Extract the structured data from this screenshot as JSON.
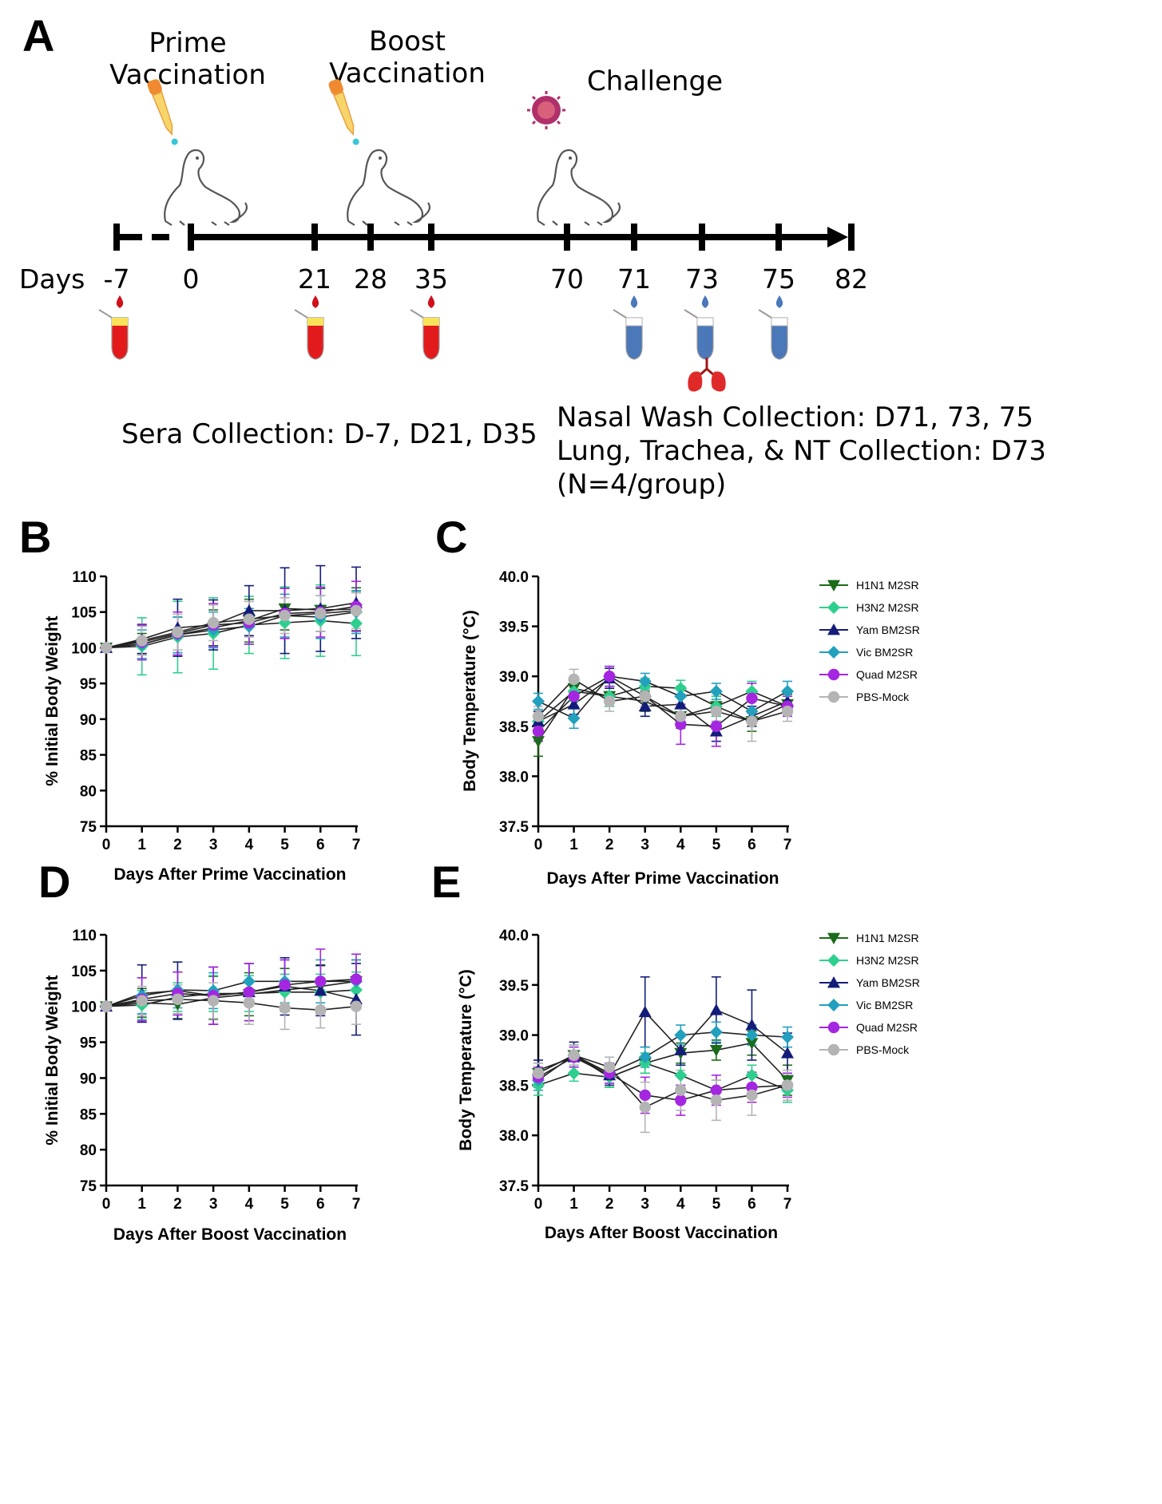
{
  "panel_A": {
    "letter": "A",
    "events": {
      "prime": {
        "line1": "Prime",
        "line2": "Vaccination"
      },
      "boost": {
        "line1": "Boost",
        "line2": "Vaccination"
      },
      "challenge": "Challenge"
    },
    "days_label": "Days",
    "days": [
      "-7",
      "0",
      "21",
      "28",
      "35",
      "70",
      "71",
      "73",
      "75",
      "82"
    ],
    "sera_note": "Sera Collection: D-7, D21, D35",
    "nasal_note_1": "Nasal Wash Collection: D71, 73, 75",
    "nasal_note_2": "Lung, Trachea, & NT Collection: D73",
    "nasal_note_3": "(N=4/group)",
    "colors": {
      "blood": "#d0101a",
      "nasal": "#4a78b8",
      "virus": "#b0306a",
      "lung": "#e02a2a",
      "dropper": "#f0a040"
    }
  },
  "legend": [
    {
      "name": "H1N1 M2SR",
      "color": "#1a6b1a",
      "marker": "triangle-down"
    },
    {
      "name": "H3N2 M2SR",
      "color": "#2ecf8e",
      "marker": "diamond"
    },
    {
      "name": "Yam BM2SR",
      "color": "#141c7a",
      "marker": "triangle-up"
    },
    {
      "name": "Vic BM2SR",
      "color": "#22a0be",
      "marker": "diamond"
    },
    {
      "name": "Quad M2SR",
      "color": "#a526e0",
      "marker": "circle"
    },
    {
      "name": "PBS-Mock",
      "color": "#b4b4b4",
      "marker": "circle"
    }
  ],
  "chart_data": [
    {
      "panel": "B",
      "type": "line",
      "xlabel": "Days After Prime Vaccination",
      "ylabel": "% Initial Body Weight",
      "xlim": [
        0,
        7
      ],
      "ylim": [
        75,
        110
      ],
      "xticks": [
        "0",
        "1",
        "2",
        "3",
        "4",
        "5",
        "6",
        "7"
      ],
      "yticks": [
        "75",
        "80",
        "85",
        "90",
        "95",
        "100",
        "105",
        "110"
      ],
      "x": [
        0,
        1,
        2,
        3,
        4,
        5,
        6,
        7
      ],
      "series": [
        {
          "name": "H1N1 M2SR",
          "values": [
            100,
            100.5,
            101.8,
            102.8,
            103.8,
            105.5,
            105.3,
            105.4
          ],
          "errors": [
            0,
            1.5,
            2.5,
            2.5,
            3,
            3,
            3,
            3
          ]
        },
        {
          "name": "H3N2 M2SR",
          "values": [
            100,
            100.2,
            101.5,
            102,
            103.2,
            103.5,
            103.8,
            103.4
          ],
          "errors": [
            0,
            4,
            5,
            5,
            4,
            5,
            5,
            4.5
          ]
        },
        {
          "name": "Yam BM2SR",
          "values": [
            100,
            101.2,
            102.8,
            103.2,
            105.2,
            105.2,
            105.5,
            106.3
          ],
          "errors": [
            0,
            2,
            4,
            3.5,
            3.5,
            6,
            6,
            5
          ]
        },
        {
          "name": "Vic BM2SR",
          "values": [
            100,
            100.5,
            101.8,
            102.5,
            103,
            104.5,
            104.3,
            105
          ],
          "errors": [
            0,
            2,
            2.5,
            2.5,
            2.5,
            3,
            3,
            3
          ]
        },
        {
          "name": "Quad M2SR",
          "values": [
            100,
            100.8,
            102,
            103.2,
            103.5,
            104.8,
            105,
            105.8
          ],
          "errors": [
            0,
            2.5,
            3,
            3,
            3,
            3.5,
            3.5,
            3.5
          ]
        },
        {
          "name": "PBS-Mock",
          "values": [
            100,
            101,
            102.2,
            103.5,
            104,
            104.5,
            104.8,
            105.2
          ],
          "errors": [
            0,
            2,
            2.5,
            2.5,
            2.5,
            2.5,
            2.5,
            2.5
          ]
        }
      ]
    },
    {
      "panel": "C",
      "type": "line",
      "xlabel": "Days After Prime Vaccination",
      "ylabel": "Body Temperature (°C)",
      "xlim": [
        0,
        7
      ],
      "ylim": [
        37.5,
        40.0
      ],
      "xticks": [
        "0",
        "1",
        "2",
        "3",
        "4",
        "5",
        "6",
        "7"
      ],
      "yticks": [
        "37.5",
        "38.0",
        "38.5",
        "39.0",
        "39.5",
        "40.0"
      ],
      "x": [
        0,
        1,
        2,
        3,
        4,
        5,
        6,
        7
      ],
      "series": [
        {
          "name": "H1N1 M2SR",
          "values": [
            38.35,
            38.88,
            38.8,
            38.75,
            38.6,
            38.7,
            38.55,
            38.72
          ],
          "errors": [
            0.15,
            0.1,
            0.1,
            0.1,
            0.12,
            0.1,
            0.1,
            0.1
          ]
        },
        {
          "name": "H3N2 M2SR",
          "values": [
            38.55,
            38.85,
            38.8,
            38.9,
            38.88,
            38.7,
            38.85,
            38.7
          ],
          "errors": [
            0.1,
            0.1,
            0.1,
            0.08,
            0.08,
            0.1,
            0.1,
            0.1
          ]
        },
        {
          "name": "Yam BM2SR",
          "values": [
            38.55,
            38.72,
            38.98,
            38.7,
            38.72,
            38.45,
            38.6,
            38.75
          ],
          "errors": [
            0.1,
            0.1,
            0.1,
            0.1,
            0.1,
            0.1,
            0.1,
            0.1
          ]
        },
        {
          "name": "Vic BM2SR",
          "values": [
            38.75,
            38.58,
            39.0,
            38.95,
            38.8,
            38.85,
            38.65,
            38.85
          ],
          "errors": [
            0.08,
            0.1,
            0.1,
            0.08,
            0.1,
            0.08,
            0.1,
            0.1
          ]
        },
        {
          "name": "Quad M2SR",
          "values": [
            38.45,
            38.8,
            39.0,
            38.8,
            38.52,
            38.5,
            38.78,
            38.7
          ],
          "errors": [
            0.1,
            0.1,
            0.1,
            0.1,
            0.2,
            0.2,
            0.15,
            0.1
          ]
        },
        {
          "name": "PBS-Mock",
          "values": [
            38.6,
            38.97,
            38.75,
            38.8,
            38.6,
            38.65,
            38.55,
            38.65
          ],
          "errors": [
            0.1,
            0.1,
            0.1,
            0.1,
            0.1,
            0.1,
            0.2,
            0.1
          ]
        }
      ]
    },
    {
      "panel": "D",
      "type": "line",
      "xlabel": "Days After Boost Vaccination",
      "ylabel": "% Initial Body Weight",
      "xlim": [
        0,
        7
      ],
      "ylim": [
        75,
        110
      ],
      "xticks": [
        "0",
        "1",
        "2",
        "3",
        "4",
        "5",
        "6",
        "7"
      ],
      "yticks": [
        "75",
        "80",
        "85",
        "90",
        "95",
        "100",
        "105",
        "110"
      ],
      "x": [
        0,
        1,
        2,
        3,
        4,
        5,
        6,
        7
      ],
      "series": [
        {
          "name": "H1N1 M2SR",
          "values": [
            100,
            100.5,
            100.3,
            101.2,
            101.7,
            102.3,
            102.8,
            103.5
          ],
          "errors": [
            0,
            2,
            2,
            3,
            3,
            3,
            3,
            3
          ]
        },
        {
          "name": "H3N2 M2SR",
          "values": [
            100,
            100.2,
            101.3,
            101.8,
            101.8,
            102,
            102,
            102.3
          ],
          "errors": [
            0,
            2,
            2,
            2.5,
            2.5,
            2.5,
            2.5,
            2.5
          ]
        },
        {
          "name": "Yam BM2SR",
          "values": [
            100,
            101.8,
            102.2,
            101.5,
            102,
            102.8,
            102.2,
            101
          ],
          "errors": [
            0,
            4,
            4,
            4,
            4,
            4,
            3.5,
            5
          ]
        },
        {
          "name": "Vic BM2SR",
          "values": [
            100,
            101.5,
            102.3,
            102.2,
            103.5,
            103.5,
            103.5,
            103.5
          ],
          "errors": [
            0,
            2.5,
            2.5,
            2.5,
            2.5,
            3,
            3,
            3
          ]
        },
        {
          "name": "Quad M2SR",
          "values": [
            100,
            101,
            101.8,
            101.5,
            102,
            103,
            103.5,
            103.8
          ],
          "errors": [
            0,
            3,
            3,
            4,
            4,
            3.5,
            4.5,
            3.5
          ]
        },
        {
          "name": "PBS-Mock",
          "values": [
            100,
            100.8,
            101,
            100.8,
            100.5,
            99.8,
            99.5,
            100
          ],
          "errors": [
            0,
            2,
            2,
            2.5,
            3,
            3,
            2.5,
            2.5
          ]
        }
      ]
    },
    {
      "panel": "E",
      "type": "line",
      "xlabel": "Days After Boost Vaccination",
      "ylabel": "Body Temperature (°C)",
      "xlim": [
        0,
        7
      ],
      "ylim": [
        37.5,
        40.0
      ],
      "xticks": [
        "0",
        "1",
        "2",
        "3",
        "4",
        "5",
        "6",
        "7"
      ],
      "yticks": [
        "37.5",
        "38.0",
        "38.5",
        "39.0",
        "39.5",
        "40.0"
      ],
      "x": [
        0,
        1,
        2,
        3,
        4,
        5,
        6,
        7
      ],
      "series": [
        {
          "name": "H1N1 M2SR",
          "values": [
            38.62,
            38.8,
            38.58,
            38.72,
            38.82,
            38.85,
            38.92,
            38.55
          ],
          "errors": [
            0.1,
            0.1,
            0.1,
            0.1,
            0.1,
            0.1,
            0.12,
            0.15
          ]
        },
        {
          "name": "H3N2 M2SR",
          "values": [
            38.5,
            38.62,
            38.58,
            38.72,
            38.6,
            38.45,
            38.6,
            38.45
          ],
          "errors": [
            0.1,
            0.08,
            0.1,
            0.1,
            0.1,
            0.1,
            0.1,
            0.12
          ]
        },
        {
          "name": "Yam BM2SR",
          "values": [
            38.65,
            38.78,
            38.6,
            39.23,
            38.85,
            39.25,
            39.1,
            38.82
          ],
          "errors": [
            0.1,
            0.15,
            0.1,
            0.35,
            0.15,
            0.33,
            0.35,
            0.2
          ]
        },
        {
          "name": "Vic BM2SR",
          "values": [
            38.55,
            38.8,
            38.62,
            38.78,
            39.0,
            39.03,
            39.0,
            38.98
          ],
          "errors": [
            0.1,
            0.1,
            0.1,
            0.1,
            0.1,
            0.1,
            0.1,
            0.1
          ]
        },
        {
          "name": "Quad M2SR",
          "values": [
            38.58,
            38.78,
            38.62,
            38.4,
            38.35,
            38.45,
            38.48,
            38.5
          ],
          "errors": [
            0.1,
            0.1,
            0.1,
            0.18,
            0.15,
            0.15,
            0.15,
            0.12
          ]
        },
        {
          "name": "PBS-Mock",
          "values": [
            38.62,
            38.8,
            38.68,
            38.28,
            38.45,
            38.35,
            38.4,
            38.5
          ],
          "errors": [
            0.1,
            0.1,
            0.1,
            0.25,
            0.2,
            0.2,
            0.2,
            0.15
          ]
        }
      ]
    }
  ]
}
